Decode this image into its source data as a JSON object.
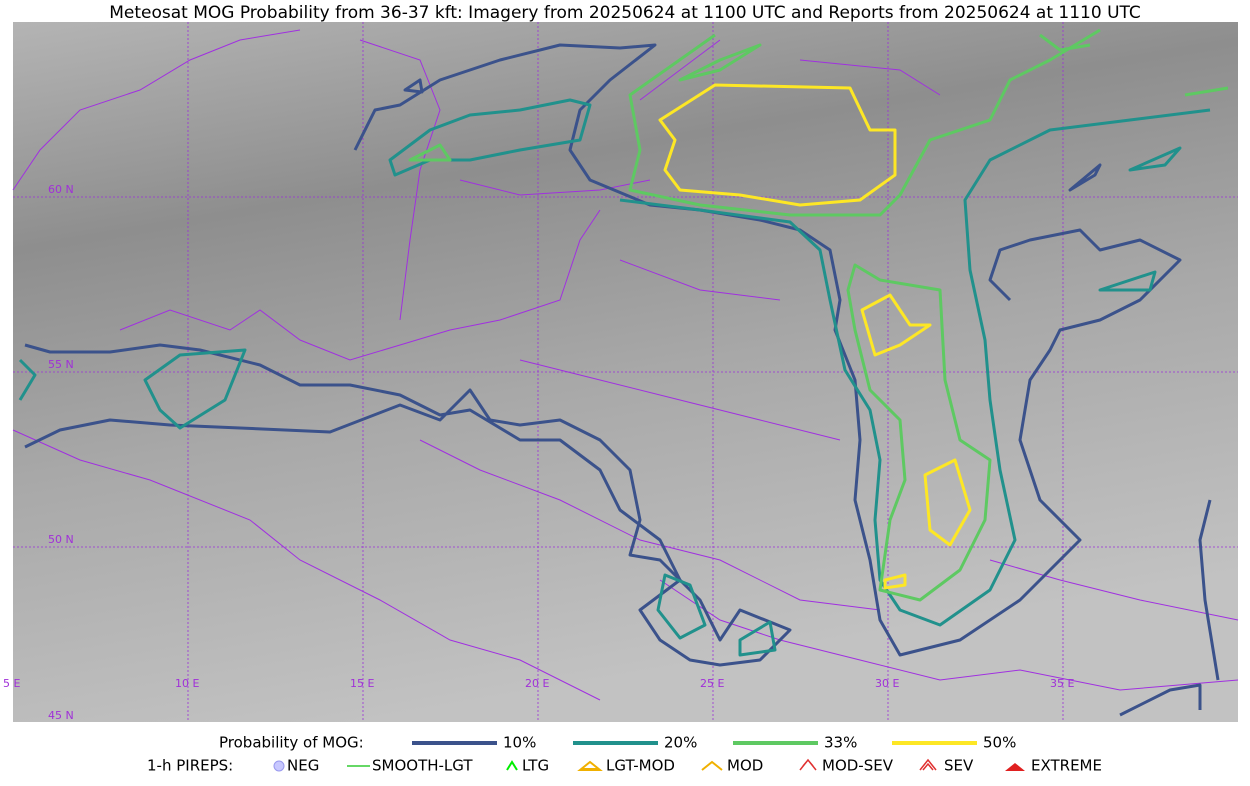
{
  "title": "Meteosat MOG Probability from 36-37 kft: Imagery from 20250624 at 1100 UTC and Reports from 20250624 at 1110 UTC",
  "map": {
    "lat_labels": [
      "60 N",
      "55 N",
      "50 N",
      "45 N"
    ],
    "lon_labels": [
      "5 E",
      "10 E",
      "15 E",
      "20 E",
      "25 E",
      "30 E",
      "35 E"
    ]
  },
  "legend": {
    "mog": {
      "label": "Probability of MOG:",
      "items": [
        {
          "label": "10%",
          "color": "#3b528b"
        },
        {
          "label": "20%",
          "color": "#21918c"
        },
        {
          "label": "33%",
          "color": "#5ec962"
        },
        {
          "label": "50%",
          "color": "#fde725"
        }
      ]
    },
    "pireps": {
      "label": "1-h PIREPS:",
      "items": [
        "NEG",
        "SMOOTH-LGT",
        "LTG",
        "LGT-MOD",
        "MOD",
        "MOD-SEV",
        "SEV",
        "EXTREME"
      ]
    }
  }
}
